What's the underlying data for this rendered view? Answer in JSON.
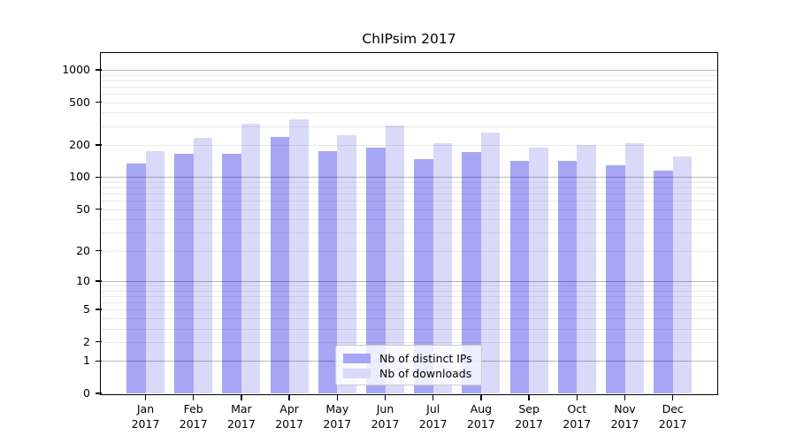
{
  "chart_data": {
    "type": "bar",
    "title": "ChIPsim 2017",
    "categories": [
      "Jan",
      "Feb",
      "Mar",
      "Apr",
      "May",
      "Jun",
      "Jul",
      "Aug",
      "Sep",
      "Oct",
      "Nov",
      "Dec"
    ],
    "category_year": "2017",
    "series": [
      {
        "name": "Nb of distinct IPs",
        "color": "#a6a6f5",
        "values": [
          133,
          166,
          166,
          239,
          176,
          190,
          148,
          172,
          142,
          142,
          129,
          116
        ]
      },
      {
        "name": "Nb of downloads",
        "color": "#d9d9fa",
        "values": [
          176,
          231,
          313,
          349,
          246,
          305,
          208,
          261,
          190,
          199,
          208,
          157
        ]
      }
    ],
    "yscale": "log1p",
    "y_tick_labels": [
      "0",
      "1",
      "2",
      "5",
      "10",
      "20",
      "50",
      "100",
      "200",
      "500",
      "1000"
    ],
    "y_ticks": [
      0,
      1,
      2,
      5,
      10,
      20,
      50,
      100,
      200,
      500,
      1000
    ],
    "ylim": [
      0,
      1400
    ],
    "xlabel": "",
    "ylabel": "",
    "grid": true,
    "legend_position": "lower-center-inside"
  }
}
